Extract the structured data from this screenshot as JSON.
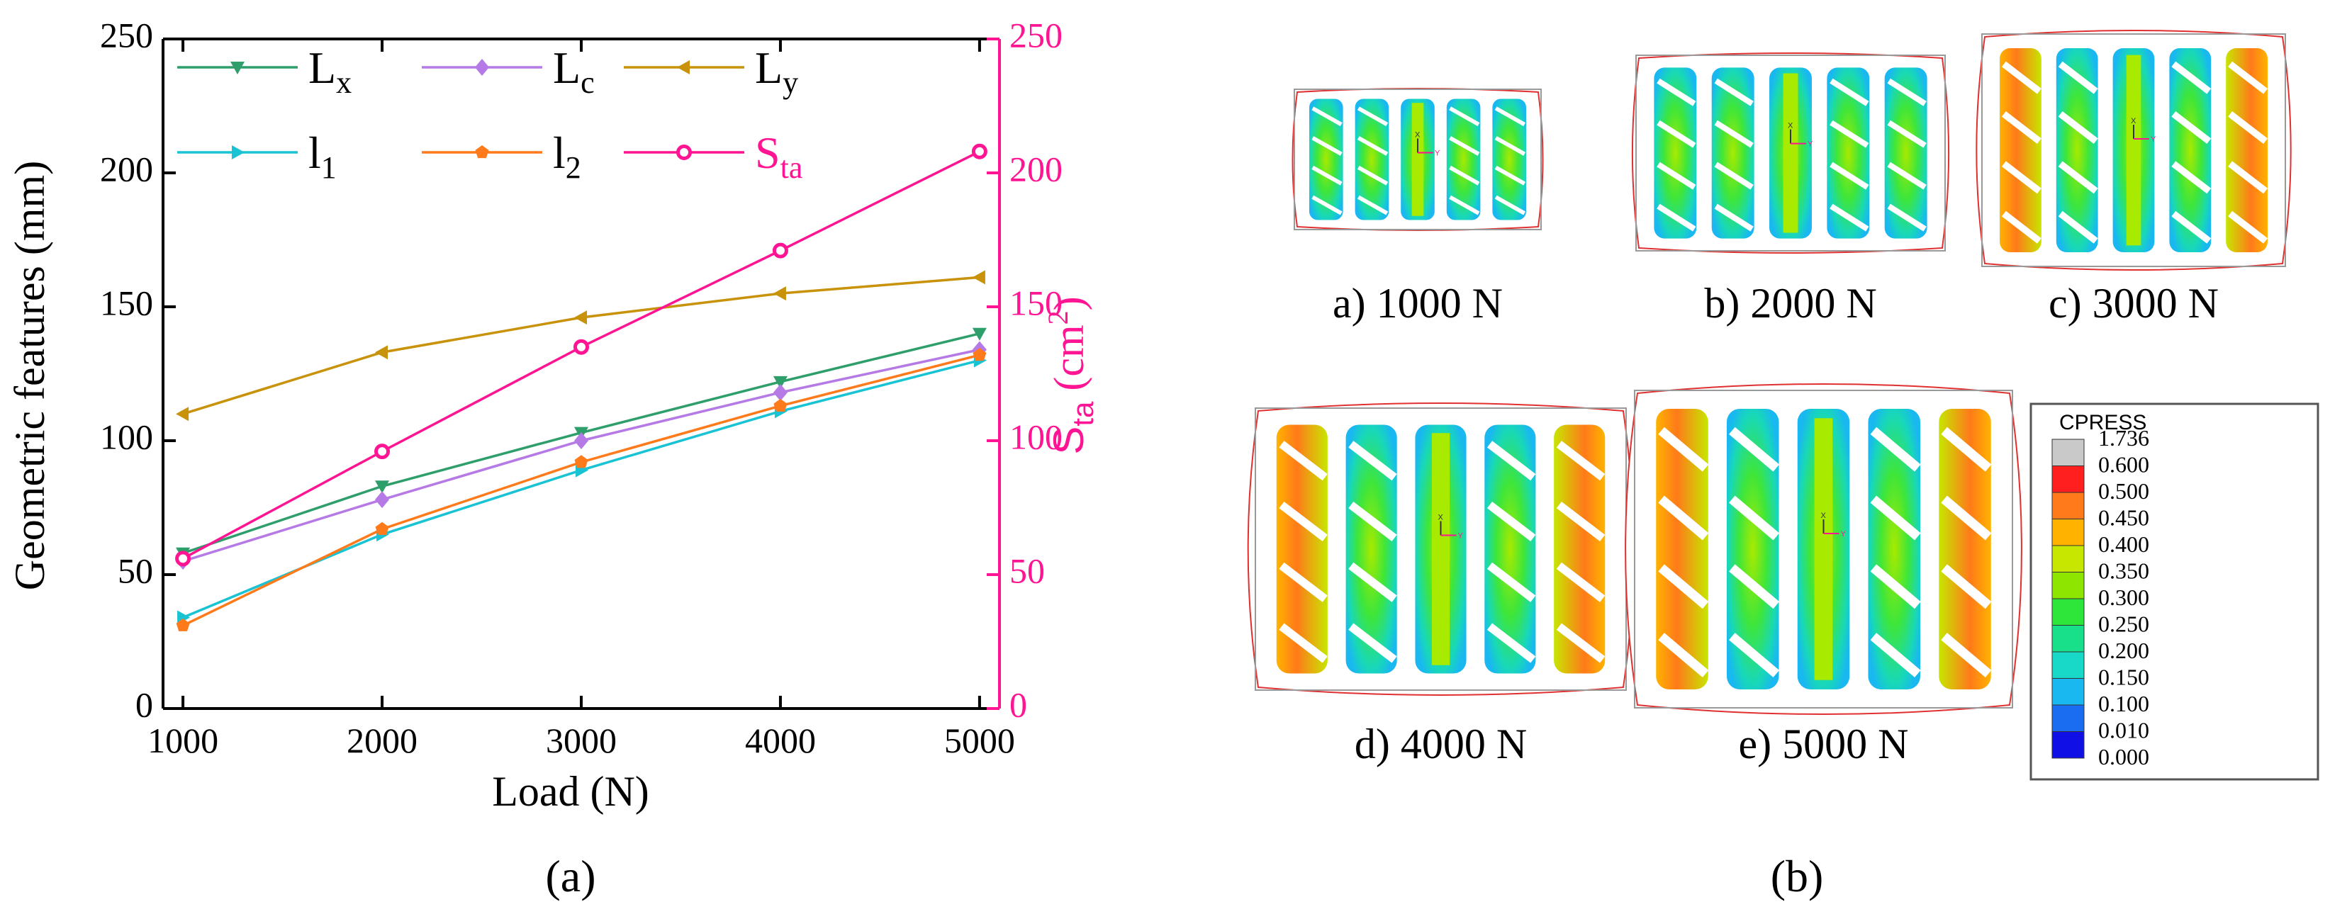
{
  "colors": {
    "Lx": "#2e9e6b",
    "Lc": "#b57ae6",
    "Ly": "#c8920a",
    "l1": "#19c3d3",
    "l2": "#ff7a1a",
    "Sta": "#ff1493",
    "axis": "#000000",
    "cpress": [
      "#c9c9c9",
      "#ff1f1f",
      "#ff7a1a",
      "#ffb300",
      "#c7e600",
      "#8ee600",
      "#2ee63a",
      "#18e08a",
      "#18d8c8",
      "#19b8f0",
      "#1a6cf0",
      "#1010e6"
    ]
  },
  "chart_data": [
    {
      "type": "line",
      "panel_label": "(a)",
      "xlabel": "Load (N)",
      "ylabel": "Geometric features (mm)",
      "y2label_main": "S",
      "y2label_sub": "ta",
      "y2label_unit": " (cm",
      "y2label_sup": "2",
      "y2label_close": ")",
      "x": [
        1000,
        2000,
        3000,
        4000,
        5000
      ],
      "x_ticks": [
        "1000",
        "2000",
        "3000",
        "4000",
        "5000"
      ],
      "xlim": [
        900,
        5100
      ],
      "ylim": [
        0,
        250
      ],
      "y_ticks": [
        "0",
        "50",
        "100",
        "150",
        "200",
        "250"
      ],
      "y2lim": [
        0,
        250
      ],
      "y2_ticks": [
        "0",
        "50",
        "100",
        "150",
        "200",
        "250"
      ],
      "series": [
        {
          "key": "Lx",
          "name_main": "L",
          "name_sub": "x",
          "marker": "triangle-down",
          "axis": "left",
          "values": [
            58,
            83,
            103,
            122,
            140
          ]
        },
        {
          "key": "Lc",
          "name_main": "L",
          "name_sub": "c",
          "marker": "diamond",
          "axis": "left",
          "values": [
            55,
            78,
            100,
            118,
            134
          ]
        },
        {
          "key": "Ly",
          "name_main": "L",
          "name_sub": "y",
          "marker": "triangle-left",
          "axis": "left",
          "values": [
            110,
            133,
            146,
            155,
            161
          ]
        },
        {
          "key": "l1",
          "name_main": "l",
          "name_sub": "1",
          "marker": "triangle-right",
          "axis": "left",
          "values": [
            34,
            65,
            89,
            111,
            130
          ]
        },
        {
          "key": "l2",
          "name_main": "l",
          "name_sub": "2",
          "marker": "pentagon",
          "axis": "left",
          "values": [
            31,
            67,
            92,
            113,
            132
          ]
        },
        {
          "key": "Sta",
          "name_main": "S",
          "name_sub": "ta",
          "marker": "circle",
          "axis": "right",
          "values": [
            56,
            96,
            135,
            171,
            208
          ]
        }
      ],
      "legend_position": "top-left"
    },
    {
      "type": "contour-image-grid",
      "panel_label": "(b)",
      "panels": [
        {
          "label": "a) 1000 N",
          "load": 1000
        },
        {
          "label": "b) 2000 N",
          "load": 2000
        },
        {
          "label": "c) 3000 N",
          "load": 3000
        },
        {
          "label": "d) 4000 N",
          "load": 4000
        },
        {
          "label": "e) 5000 N",
          "load": 5000
        }
      ],
      "legend_title": "CPRESS",
      "legend_values": [
        "1.736",
        "0.600",
        "0.500",
        "0.450",
        "0.400",
        "0.350",
        "0.300",
        "0.250",
        "0.200",
        "0.150",
        "0.100",
        "0.010",
        "0.000"
      ],
      "axis_glyph_x": "X",
      "axis_glyph_y": "Y"
    }
  ]
}
